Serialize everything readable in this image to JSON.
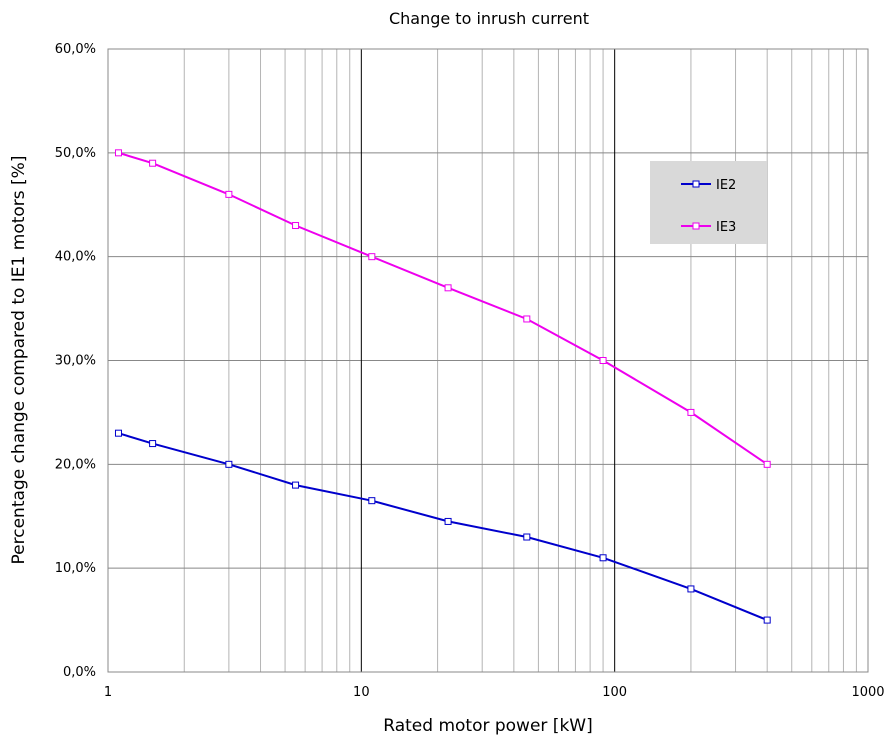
{
  "chart_data": {
    "type": "line",
    "title": "Change to inrush current",
    "xlabel": "Rated motor power [kW]",
    "ylabel": "Percentage change compared to IE1 motors [%]",
    "x_scale": "log",
    "xlim": [
      1,
      1000
    ],
    "ylim": [
      0,
      0.6
    ],
    "x_ticks": [
      1,
      10,
      100,
      1000
    ],
    "x_tick_labels": [
      "1",
      "10",
      "100",
      "1000"
    ],
    "y_ticks": [
      0,
      0.1,
      0.2,
      0.3,
      0.4,
      0.5,
      0.6
    ],
    "y_tick_labels": [
      "0,0%",
      "10,0%",
      "20,0%",
      "30,0%",
      "40,0%",
      "50,0%",
      "60,0%"
    ],
    "grid": true,
    "legend_position": "top-right",
    "series": [
      {
        "name": "IE2",
        "color": "#0000cc",
        "x": [
          1.1,
          1.5,
          3,
          5.5,
          11,
          22,
          45,
          90,
          200,
          400
        ],
        "y": [
          0.23,
          0.22,
          0.2,
          0.18,
          0.165,
          0.145,
          0.13,
          0.11,
          0.08,
          0.05
        ]
      },
      {
        "name": "IE3",
        "color": "#ee00ee",
        "x": [
          1.1,
          1.5,
          3,
          5.5,
          11,
          22,
          45,
          90,
          200,
          400
        ],
        "y": [
          0.5,
          0.49,
          0.46,
          0.43,
          0.4,
          0.37,
          0.34,
          0.3,
          0.25,
          0.2
        ]
      }
    ]
  }
}
